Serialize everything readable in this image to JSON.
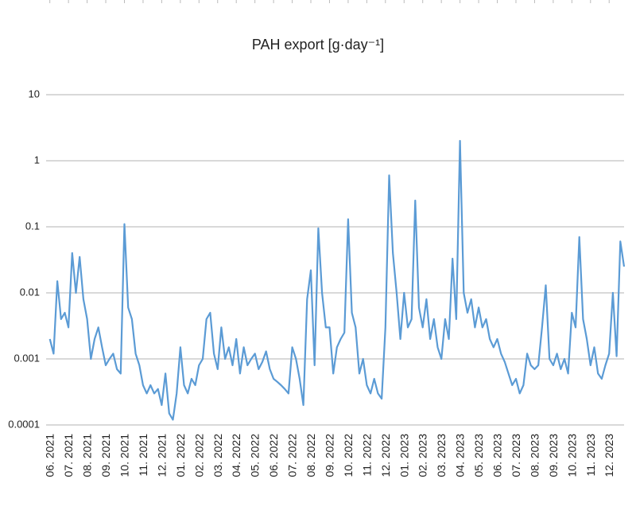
{
  "chart_data": {
    "type": "line",
    "title": "PAH export [g·day⁻¹]",
    "log_y": true,
    "grid": true,
    "xlim": [
      -0.2,
      30.8
    ],
    "xticks": [
      {
        "value": 0,
        "label": "06. 2021"
      },
      {
        "value": 1,
        "label": "07. 2021"
      },
      {
        "value": 2,
        "label": "08. 2021"
      },
      {
        "value": 3,
        "label": "09. 2021"
      },
      {
        "value": 4,
        "label": "10. 2021"
      },
      {
        "value": 5,
        "label": "11. 2021"
      },
      {
        "value": 6,
        "label": "12. 2021"
      },
      {
        "value": 7,
        "label": "01. 2022"
      },
      {
        "value": 8,
        "label": "02. 2022"
      },
      {
        "value": 9,
        "label": "03. 2022"
      },
      {
        "value": 10,
        "label": "04. 2022"
      },
      {
        "value": 11,
        "label": "05. 2022"
      },
      {
        "value": 12,
        "label": "06. 2022"
      },
      {
        "value": 13,
        "label": "07. 2022"
      },
      {
        "value": 14,
        "label": "08. 2022"
      },
      {
        "value": 15,
        "label": "09. 2022"
      },
      {
        "value": 16,
        "label": "10. 2022"
      },
      {
        "value": 17,
        "label": "11. 2022"
      },
      {
        "value": 18,
        "label": "12. 2022"
      },
      {
        "value": 19,
        "label": "01. 2023"
      },
      {
        "value": 20,
        "label": "02. 2023"
      },
      {
        "value": 21,
        "label": "03. 2023"
      },
      {
        "value": 22,
        "label": "04. 2023"
      },
      {
        "value": 23,
        "label": "05. 2023"
      },
      {
        "value": 24,
        "label": "06. 2023"
      },
      {
        "value": 25,
        "label": "07. 2023"
      },
      {
        "value": 26,
        "label": "08. 2023"
      },
      {
        "value": 27,
        "label": "09. 2023"
      },
      {
        "value": 28,
        "label": "10. 2023"
      },
      {
        "value": 29,
        "label": "11. 2023"
      },
      {
        "value": 30,
        "label": "12. 2023"
      }
    ],
    "ylim": [
      0.0001,
      10
    ],
    "yticks": [
      0.0001,
      0.001,
      0.01,
      0.1,
      1,
      10
    ],
    "x": [
      0,
      0.2,
      0.4,
      0.6,
      0.8,
      1,
      1.2,
      1.4,
      1.6,
      1.8,
      2,
      2.2,
      2.4,
      2.6,
      2.8,
      3,
      3.2,
      3.4,
      3.6,
      3.8,
      4,
      4.2,
      4.4,
      4.6,
      4.8,
      5,
      5.2,
      5.4,
      5.6,
      5.8,
      6,
      6.2,
      6.4,
      6.6,
      6.8,
      7,
      7.2,
      7.4,
      7.6,
      7.8,
      8,
      8.2,
      8.4,
      8.6,
      8.8,
      9,
      9.2,
      9.4,
      9.6,
      9.8,
      10,
      10.2,
      10.4,
      10.6,
      10.8,
      11,
      11.2,
      11.4,
      11.6,
      11.8,
      12,
      12.2,
      12.4,
      12.6,
      12.8,
      13,
      13.2,
      13.4,
      13.6,
      13.8,
      14,
      14.2,
      14.4,
      14.6,
      14.8,
      15,
      15.2,
      15.4,
      15.6,
      15.8,
      16,
      16.2,
      16.4,
      16.6,
      16.8,
      17,
      17.2,
      17.4,
      17.6,
      17.8,
      18,
      18.2,
      18.4,
      18.6,
      18.8,
      19,
      19.2,
      19.4,
      19.6,
      19.8,
      20,
      20.2,
      20.4,
      20.6,
      20.8,
      21,
      21.2,
      21.4,
      21.6,
      21.8,
      22,
      22.2,
      22.4,
      22.6,
      22.8,
      23,
      23.2,
      23.4,
      23.6,
      23.8,
      24,
      24.2,
      24.4,
      24.6,
      24.8,
      25,
      25.2,
      25.4,
      25.6,
      25.8,
      26,
      26.2,
      26.4,
      26.6,
      26.8,
      27,
      27.2,
      27.4,
      27.6,
      27.8,
      28,
      28.2,
      28.4,
      28.6,
      28.8,
      29,
      29.2,
      29.4,
      29.6,
      29.8,
      30,
      30.2,
      30.4,
      30.6,
      30.8
    ],
    "series": [
      {
        "color": "#5b9bd5",
        "values": [
          0.002,
          0.0012,
          0.015,
          0.004,
          0.005,
          0.003,
          0.04,
          0.01,
          0.035,
          0.008,
          0.004,
          0.001,
          0.002,
          0.003,
          0.0015,
          0.0008,
          0.001,
          0.0012,
          0.0007,
          0.0006,
          0.11,
          0.006,
          0.004,
          0.0012,
          0.0008,
          0.0004,
          0.0003,
          0.0004,
          0.0003,
          0.00035,
          0.0002,
          0.0006,
          0.00015,
          0.00012,
          0.0003,
          0.0015,
          0.0004,
          0.0003,
          0.0005,
          0.0004,
          0.0008,
          0.001,
          0.004,
          0.005,
          0.0012,
          0.0007,
          0.003,
          0.001,
          0.0015,
          0.0008,
          0.002,
          0.0006,
          0.0015,
          0.0008,
          0.001,
          0.0012,
          0.0007,
          0.0009,
          0.0013,
          0.0007,
          0.0005,
          0.00045,
          0.0004,
          0.00035,
          0.0003,
          0.0015,
          0.001,
          0.0005,
          0.0002,
          0.008,
          0.022,
          0.0008,
          0.095,
          0.01,
          0.003,
          0.003,
          0.0006,
          0.0015,
          0.002,
          0.0025,
          0.13,
          0.005,
          0.003,
          0.0006,
          0.001,
          0.0004,
          0.0003,
          0.0005,
          0.0003,
          0.00025,
          0.003,
          0.6,
          0.04,
          0.01,
          0.002,
          0.01,
          0.003,
          0.004,
          0.25,
          0.006,
          0.003,
          0.008,
          0.002,
          0.004,
          0.0015,
          0.001,
          0.004,
          0.002,
          0.033,
          0.004,
          2,
          0.01,
          0.005,
          0.008,
          0.003,
          0.006,
          0.003,
          0.004,
          0.002,
          0.0015,
          0.002,
          0.0012,
          0.0009,
          0.0006,
          0.0004,
          0.0005,
          0.0003,
          0.0004,
          0.0012,
          0.0008,
          0.0007,
          0.0008,
          0.003,
          0.013,
          0.001,
          0.0008,
          0.0012,
          0.0007,
          0.001,
          0.0006,
          0.005,
          0.003,
          0.07,
          0.004,
          0.002,
          0.0008,
          0.0015,
          0.0006,
          0.0005,
          0.0008,
          0.0012,
          0.01,
          0.0011,
          0.06,
          0.025
        ]
      }
    ]
  }
}
